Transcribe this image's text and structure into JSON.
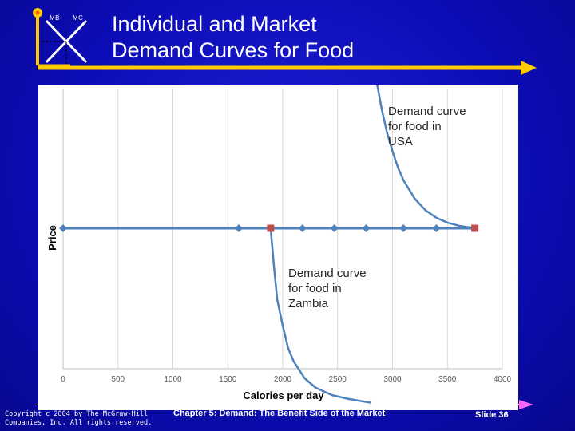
{
  "logo": {
    "left_label": "MB",
    "right_label": "MC"
  },
  "slide": {
    "title_line1": "Individual and Market",
    "title_line2": "Demand Curves for Food",
    "copyright": "Copyright c 2004 by The McGraw-Hill Companies, Inc. All rights reserved.",
    "chapter": "Chapter 5: Demand: The Benefit Side of the Market",
    "slide_number": "Slide 36"
  },
  "colors": {
    "background": "#0d0db8",
    "accent": "#ffcc00",
    "line": "#4f81bd",
    "highlight_marker": "#c0504d"
  },
  "chart_data": {
    "type": "line",
    "xlabel": "Calories per day",
    "ylabel": "Price",
    "xlim": [
      0,
      4000
    ],
    "xticks": [
      0,
      500,
      1000,
      1500,
      2000,
      2500,
      3000,
      3500,
      4000
    ],
    "grid": "vertical",
    "series": [
      {
        "role": "price-line",
        "x": [
          0,
          1600,
          1890,
          2180,
          2470,
          2760,
          3100,
          3400,
          3750
        ],
        "y": [
          1,
          1,
          1,
          1,
          1,
          1,
          1,
          1,
          1
        ],
        "highlighted_x": [
          1890,
          3750
        ]
      },
      {
        "name": "Demand curve for food in USA",
        "x": [
          2850,
          2900,
          2950,
          3000,
          3050,
          3100,
          3200,
          3300,
          3400,
          3500,
          3600,
          3750
        ],
        "y": [
          5.0,
          4.2,
          3.55,
          3.05,
          2.62,
          2.28,
          1.8,
          1.48,
          1.28,
          1.15,
          1.07,
          1.0
        ]
      },
      {
        "name": "Demand curve for food in Zambia",
        "x": [
          1870,
          1890,
          1920,
          1950,
          2000,
          2050,
          2100,
          2200,
          2300,
          2450,
          2600,
          2800
        ],
        "y": [
          1.05,
          1.0,
          0.0,
          -0.9,
          -1.6,
          -2.2,
          -2.55,
          -3.0,
          -3.25,
          -3.45,
          -3.55,
          -3.65
        ]
      }
    ],
    "annotations": [
      {
        "lines": [
          "Demand curve",
          "for food in",
          "USA"
        ]
      },
      {
        "lines": [
          "Demand curve",
          "for food in",
          "Zambia"
        ]
      }
    ]
  }
}
